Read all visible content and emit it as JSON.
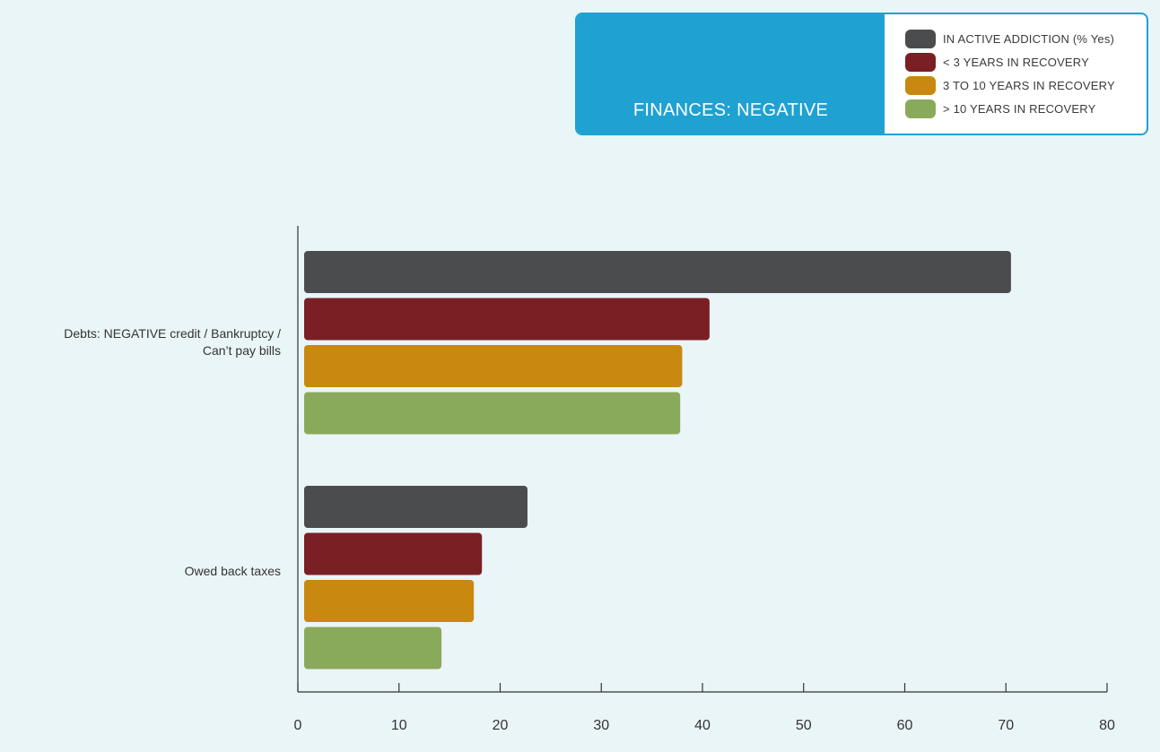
{
  "chart_data": {
    "type": "bar",
    "orientation": "horizontal",
    "title": "FINANCES: NEGATIVE",
    "categories": [
      "Debts: NEGATIVE credit / Bankruptcy / Can’t pay bills",
      "Owed back taxes"
    ],
    "series": [
      {
        "name": "IN ACTIVE ADDICTION (% Yes)",
        "color": "#4b4c4e",
        "values": [
          70.5,
          22.7
        ]
      },
      {
        "name": "< 3 YEARS IN RECOVERY",
        "color": "#7a1f24",
        "values": [
          40.7,
          18.2
        ]
      },
      {
        "name": "3 TO 10 YEARS IN RECOVERY",
        "color": "#c9880f",
        "values": [
          38.0,
          17.4
        ]
      },
      {
        "name": "> 10 YEARS IN RECOVERY",
        "color": "#8aaa5b",
        "values": [
          37.8,
          14.2
        ]
      }
    ],
    "xlim": [
      0,
      80
    ],
    "xticks": [
      0,
      10,
      20,
      30,
      40,
      50,
      60,
      70,
      80
    ],
    "legend_position": "top-right"
  },
  "colors": {
    "background": "#eaf5f8",
    "legend_accent": "#1fa1d2",
    "axis": "#333333"
  }
}
